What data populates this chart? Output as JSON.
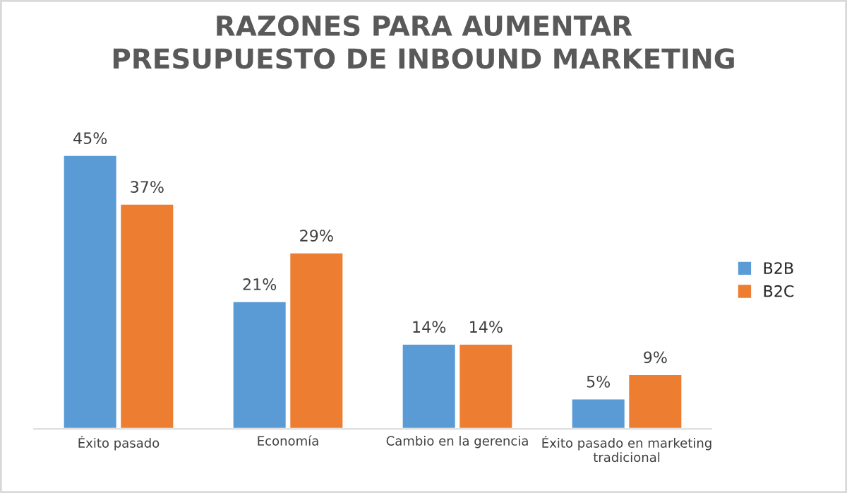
{
  "chart_data": {
    "type": "bar",
    "title": "RAZONES PARA AUMENTAR\nPRESUPUESTO DE INBOUND MARKETING",
    "categories": [
      "Éxito pasado",
      "Economía",
      "Cambio en la gerencia",
      "Éxito pasado en marketing\ntradicional"
    ],
    "series": [
      {
        "name": "B2B",
        "color": "#5b9bd5",
        "values": [
          45,
          21,
          14,
          5
        ],
        "value_labels": [
          "45%",
          "21%",
          "14%",
          "5%"
        ]
      },
      {
        "name": "B2C",
        "color": "#ed7d31",
        "values": [
          37,
          29,
          14,
          9
        ],
        "value_labels": [
          "37%",
          "29%",
          "14%",
          "9%"
        ]
      }
    ],
    "legend": "right"
  }
}
